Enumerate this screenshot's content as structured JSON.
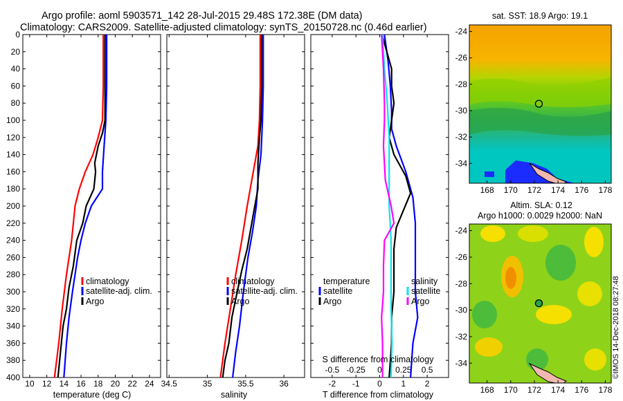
{
  "title": {
    "line1": "Argo profile: aoml 5903571_142 28-Jul-2015 29.48S 172.38E (DM data)",
    "line2": "Climatology: CARS2009. Satellite-adjusted climatology: synTS_20150728.nc (0.46d earlier)"
  },
  "credit": "©IMOS 14-Dec-2018 08:27:48",
  "colors": {
    "climatology": "#ff0000",
    "satellite": "#0000ff",
    "argo": "#000000",
    "salinity": "#ff00ff",
    "salinity_sat": "#00e5ee"
  },
  "chart_data": [
    {
      "type": "line",
      "name": "temperature-profile",
      "xlabel": "temperature (deg C)",
      "xlim": [
        9.2,
        25.3
      ],
      "ylim": [
        400,
        0
      ],
      "xticks": [
        10,
        12,
        14,
        16,
        18,
        20,
        22,
        24
      ],
      "yticks": [
        0,
        20,
        40,
        60,
        80,
        100,
        120,
        140,
        160,
        180,
        200,
        220,
        240,
        260,
        280,
        300,
        320,
        340,
        360,
        380,
        400
      ],
      "legend": [
        "climatology",
        "satellite-adj. clim.",
        "Argo"
      ],
      "series": [
        {
          "name": "climatology",
          "color": "#ff0000",
          "points": [
            [
              18.6,
              0
            ],
            [
              18.6,
              60
            ],
            [
              18.5,
              100
            ],
            [
              18.0,
              120
            ],
            [
              17.4,
              140
            ],
            [
              16.5,
              160
            ],
            [
              15.8,
              180
            ],
            [
              15.3,
              200
            ],
            [
              14.9,
              240
            ],
            [
              14.3,
              280
            ],
            [
              13.8,
              320
            ],
            [
              13.4,
              360
            ],
            [
              12.9,
              400
            ]
          ]
        },
        {
          "name": "satellite-adj. clim.",
          "color": "#0000ff",
          "points": [
            [
              19.0,
              0
            ],
            [
              19.0,
              60
            ],
            [
              18.9,
              100
            ],
            [
              18.7,
              130
            ],
            [
              18.5,
              160
            ],
            [
              18.5,
              180
            ],
            [
              17.2,
              200
            ],
            [
              16.5,
              220
            ],
            [
              16.0,
              240
            ],
            [
              15.6,
              260
            ],
            [
              15.3,
              280
            ],
            [
              15.0,
              300
            ],
            [
              14.6,
              330
            ],
            [
              14.3,
              360
            ],
            [
              14.0,
              400
            ]
          ]
        },
        {
          "name": "Argo",
          "color": "#000000",
          "points": [
            [
              18.8,
              0
            ],
            [
              18.8,
              60
            ],
            [
              18.8,
              100
            ],
            [
              18.5,
              115
            ],
            [
              18.0,
              130
            ],
            [
              17.6,
              150
            ],
            [
              17.7,
              160
            ],
            [
              17.5,
              180
            ],
            [
              16.6,
              200
            ],
            [
              16.2,
              220
            ],
            [
              15.5,
              240
            ],
            [
              15.1,
              270
            ],
            [
              14.6,
              295
            ],
            [
              14.3,
              320
            ],
            [
              13.9,
              340
            ],
            [
              13.6,
              370
            ],
            [
              13.3,
              400
            ]
          ]
        }
      ]
    },
    {
      "type": "line",
      "name": "salinity-profile",
      "xlabel": "salinity",
      "xlim": [
        34.47,
        36.27
      ],
      "ylim": [
        400,
        0
      ],
      "xticks": [
        34.5,
        35,
        35.5,
        36
      ],
      "legend": [
        "climatology",
        "satellite-adj. clim.",
        "Argo"
      ],
      "series": [
        {
          "name": "climatology",
          "color": "#ff0000",
          "points": [
            [
              35.69,
              0
            ],
            [
              35.69,
              60
            ],
            [
              35.68,
              100
            ],
            [
              35.66,
              130
            ],
            [
              35.6,
              160
            ],
            [
              35.52,
              200
            ],
            [
              35.45,
              240
            ],
            [
              35.37,
              280
            ],
            [
              35.3,
              320
            ],
            [
              35.23,
              360
            ],
            [
              35.17,
              400
            ]
          ]
        },
        {
          "name": "satellite-adj. clim.",
          "color": "#0000ff",
          "points": [
            [
              35.73,
              0
            ],
            [
              35.73,
              60
            ],
            [
              35.72,
              100
            ],
            [
              35.7,
              140
            ],
            [
              35.66,
              170
            ],
            [
              35.64,
              200
            ],
            [
              35.59,
              230
            ],
            [
              35.53,
              260
            ],
            [
              35.47,
              300
            ],
            [
              35.42,
              340
            ],
            [
              35.37,
              370
            ],
            [
              35.33,
              400
            ]
          ]
        },
        {
          "name": "Argo",
          "color": "#000000",
          "points": [
            [
              35.71,
              0
            ],
            [
              35.71,
              60
            ],
            [
              35.7,
              100
            ],
            [
              35.68,
              120
            ],
            [
              35.66,
              150
            ],
            [
              35.66,
              180
            ],
            [
              35.62,
              200
            ],
            [
              35.58,
              220
            ],
            [
              35.52,
              250
            ],
            [
              35.45,
              275
            ],
            [
              35.39,
              300
            ],
            [
              35.32,
              330
            ],
            [
              35.28,
              360
            ],
            [
              35.23,
              380
            ],
            [
              35.2,
              400
            ]
          ]
        }
      ]
    },
    {
      "type": "line",
      "name": "difference-profile",
      "xlabel": "T difference from climatology",
      "xlabel2": "S difference from climatology",
      "xlim": [
        -2.9,
        2.9
      ],
      "ylim": [
        400,
        0
      ],
      "xticks": [
        -2,
        -1,
        0,
        1,
        2
      ],
      "sticks": [
        -0.5,
        -0.25,
        0,
        0.25,
        0.5
      ],
      "legend_titles": [
        "temperature",
        "salinity"
      ],
      "legend": [
        "satellite",
        "Argo",
        "satellite",
        "Argo"
      ],
      "series": [
        {
          "name": "T satellite",
          "color": "#0000ff",
          "points": [
            [
              0.2,
              0
            ],
            [
              0.35,
              30
            ],
            [
              0.45,
              60
            ],
            [
              0.5,
              90
            ],
            [
              0.5,
              110
            ],
            [
              0.7,
              130
            ],
            [
              1.1,
              160
            ],
            [
              1.4,
              190
            ],
            [
              1.5,
              220
            ],
            [
              1.5,
              260
            ],
            [
              1.5,
              300
            ],
            [
              1.6,
              330
            ],
            [
              1.4,
              360
            ],
            [
              1.3,
              400
            ]
          ]
        },
        {
          "name": "T Argo",
          "color": "#000000",
          "points": [
            [
              0.1,
              0
            ],
            [
              0.3,
              20
            ],
            [
              0.5,
              40
            ],
            [
              0.5,
              60
            ],
            [
              0.6,
              80
            ],
            [
              0.5,
              100
            ],
            [
              0.4,
              120
            ],
            [
              0.6,
              140
            ],
            [
              1.1,
              165
            ],
            [
              1.3,
              185
            ],
            [
              1.0,
              205
            ],
            [
              0.7,
              225
            ],
            [
              0.6,
              250
            ],
            [
              0.6,
              280
            ],
            [
              0.6,
              300
            ],
            [
              0.5,
              330
            ],
            [
              0.5,
              360
            ],
            [
              0.4,
              400
            ]
          ]
        },
        {
          "name": "S satellite",
          "color": "#00e5ee",
          "points": [
            [
              0.03,
              0
            ],
            [
              0.05,
              40
            ],
            [
              0.08,
              80
            ],
            [
              0.1,
              120
            ],
            [
              0.1,
              160
            ],
            [
              0.1,
              200
            ],
            [
              0.12,
              240
            ],
            [
              0.12,
              280
            ],
            [
              0.12,
              320
            ],
            [
              0.13,
              360
            ],
            [
              0.12,
              400
            ]
          ]
        },
        {
          "name": "S Argo",
          "color": "#ff00ff",
          "points": [
            [
              0.02,
              0
            ],
            [
              0.04,
              40
            ],
            [
              0.05,
              80
            ],
            [
              0.05,
              100
            ],
            [
              0.04,
              130
            ],
            [
              0.06,
              170
            ],
            [
              0.12,
              200
            ],
            [
              0.15,
              220
            ],
            [
              0.05,
              240
            ],
            [
              0.04,
              270
            ],
            [
              0.04,
              300
            ],
            [
              0.02,
              330
            ],
            [
              0.03,
              360
            ],
            [
              0.03,
              400
            ]
          ]
        }
      ]
    },
    {
      "type": "heatmap",
      "name": "sst-map",
      "title": "sat. SST: 18.9 Argo: 19.1",
      "xlim": [
        166.5,
        178.5
      ],
      "ylim": [
        -35.5,
        -23.5
      ],
      "xticks": [
        168,
        170,
        172,
        174,
        176,
        178
      ],
      "yticks": [
        -24,
        -26,
        -28,
        -30,
        -32,
        -34
      ],
      "argo_location": [
        172.38,
        -29.48
      ]
    },
    {
      "type": "heatmap",
      "name": "sla-map",
      "title": "Altim. SLA: 0.12",
      "subtitle": "Argo h1000: 0.0029 h2000: NaN",
      "xlim": [
        166.5,
        178.5
      ],
      "ylim": [
        -35.5,
        -23.5
      ],
      "xticks": [
        168,
        170,
        172,
        174,
        176,
        178
      ],
      "yticks": [
        -24,
        -26,
        -28,
        -30,
        -32,
        -34
      ],
      "argo_location": [
        172.38,
        -29.48
      ]
    }
  ]
}
